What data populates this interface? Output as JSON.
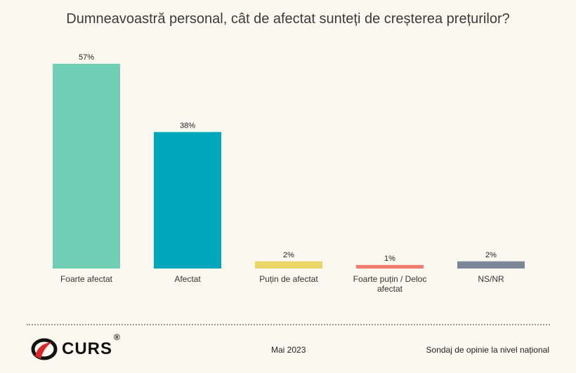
{
  "chart_data": {
    "type": "bar",
    "title": "Dumneavoastră personal, cât de afectat sunteți de creșterea prețurilor?",
    "categories": [
      "Foarte afectat",
      "Afectat",
      "Puțin de afectat",
      "Foarte puțin / Deloc afectat",
      "NS/NR"
    ],
    "values": [
      57,
      38,
      2,
      1,
      2
    ],
    "data_labels": [
      "57%",
      "38%",
      "2%",
      "1%",
      "2%"
    ],
    "colors": [
      "#6fcfb5",
      "#00a6b9",
      "#ead567",
      "#f07d6e",
      "#7c8898"
    ],
    "ylim": [
      0,
      60
    ],
    "grid": false,
    "legend": "none"
  },
  "footer": {
    "logo": "CURS",
    "logo_mark": "®",
    "date": "Mai 2023",
    "source": "Sondaj de opinie la nivel național"
  }
}
